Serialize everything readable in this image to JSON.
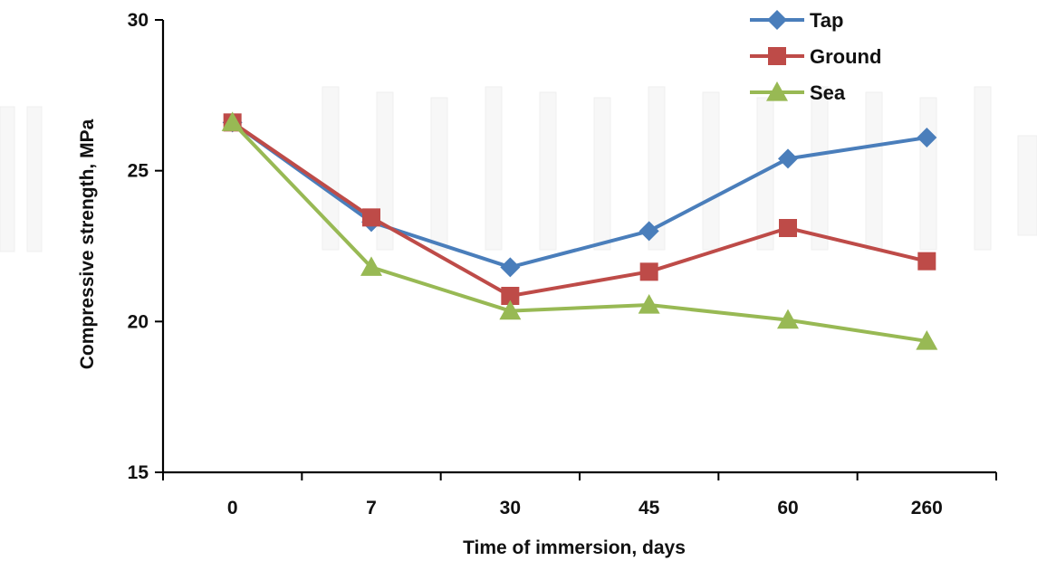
{
  "chart_data": {
    "type": "line",
    "categories": [
      "0",
      "7",
      "30",
      "45",
      "60",
      "260"
    ],
    "series": [
      {
        "name": "Tap",
        "color": "#4a7ebb",
        "marker": "diamond",
        "values": [
          26.6,
          23.3,
          21.8,
          23.0,
          25.4,
          26.1
        ]
      },
      {
        "name": "Ground",
        "color": "#be4b48",
        "marker": "square",
        "values": [
          26.6,
          23.45,
          20.85,
          21.65,
          23.1,
          22.0
        ]
      },
      {
        "name": "Sea",
        "color": "#98b954",
        "marker": "triangle",
        "values": [
          26.6,
          21.8,
          20.35,
          20.55,
          20.05,
          19.35
        ]
      }
    ],
    "xlabel": "Time of immersion, days",
    "ylabel": "Compressive strength, MPa",
    "ylim": [
      15,
      30
    ],
    "yticks": [
      15,
      20,
      25,
      30
    ],
    "ytick_labels": [
      "15",
      "20",
      "25",
      "30"
    ],
    "grid": false,
    "legend": "top-right"
  }
}
